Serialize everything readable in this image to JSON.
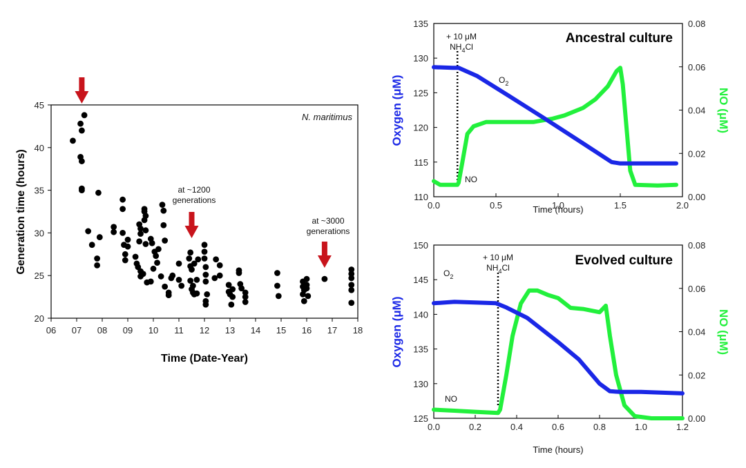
{
  "colors": {
    "oxygen": "#1a27e6",
    "no": "#22f03c",
    "arrow": "#c8141c",
    "points": "#000000"
  },
  "chart_data": [
    {
      "type": "scatter",
      "title": "N. maritimus",
      "xlabel": "Time (Date-Year)",
      "ylabel": "Generation time (hours)",
      "xlim": [
        6,
        18
      ],
      "ylim": [
        20,
        45
      ],
      "xtick_values": [
        6,
        7,
        8,
        9,
        10,
        11,
        12,
        13,
        14,
        15,
        16,
        17,
        18
      ],
      "xtick_labels": [
        "06",
        "07",
        "08",
        "09",
        "10",
        "11",
        "12",
        "13",
        "14",
        "15",
        "16",
        "17",
        "18"
      ],
      "ytick_values": [
        20,
        25,
        30,
        35,
        40,
        45
      ],
      "ytick_labels": [
        "20",
        "25",
        "30",
        "35",
        "40",
        "45"
      ],
      "annotations": [
        {
          "text": [
            "at ~1200",
            "generations"
          ],
          "x": 11.5
        },
        {
          "text": [
            "at ~3000",
            "generations"
          ],
          "x": 16.7
        }
      ],
      "arrows_at_x": [
        7.2,
        11.5,
        16.7
      ],
      "points": [
        [
          6.85,
          40.8
        ],
        [
          7.15,
          42.8
        ],
        [
          7.2,
          42.0
        ],
        [
          7.3,
          43.8
        ],
        [
          7.15,
          38.9
        ],
        [
          7.2,
          38.4
        ],
        [
          7.2,
          35.2
        ],
        [
          7.2,
          35.0
        ],
        [
          7.45,
          30.2
        ],
        [
          7.6,
          28.6
        ],
        [
          7.8,
          27.0
        ],
        [
          7.8,
          26.2
        ],
        [
          7.85,
          34.7
        ],
        [
          7.9,
          29.5
        ],
        [
          8.45,
          30.7
        ],
        [
          8.45,
          30.1
        ],
        [
          8.8,
          33.9
        ],
        [
          8.8,
          32.8
        ],
        [
          8.8,
          30.0
        ],
        [
          8.85,
          28.6
        ],
        [
          8.9,
          27.5
        ],
        [
          8.9,
          26.8
        ],
        [
          9.0,
          29.2
        ],
        [
          9.0,
          28.4
        ],
        [
          9.3,
          27.2
        ],
        [
          9.35,
          26.4
        ],
        [
          9.4,
          26.0
        ],
        [
          9.45,
          31.0
        ],
        [
          9.5,
          30.5
        ],
        [
          9.5,
          29.9
        ],
        [
          9.45,
          29.0
        ],
        [
          9.5,
          25.5
        ],
        [
          9.5,
          24.9
        ],
        [
          9.6,
          25.2
        ],
        [
          9.65,
          32.8
        ],
        [
          9.65,
          32.5
        ],
        [
          9.7,
          32.0
        ],
        [
          9.65,
          31.5
        ],
        [
          9.7,
          30.3
        ],
        [
          9.7,
          28.7
        ],
        [
          9.75,
          24.2
        ],
        [
          9.9,
          29.3
        ],
        [
          9.95,
          28.8
        ],
        [
          9.9,
          24.3
        ],
        [
          10.0,
          25.8
        ],
        [
          10.05,
          27.8
        ],
        [
          10.1,
          27.3
        ],
        [
          10.15,
          26.5
        ],
        [
          10.2,
          28.1
        ],
        [
          10.3,
          24.9
        ],
        [
          10.35,
          33.3
        ],
        [
          10.4,
          32.6
        ],
        [
          10.4,
          30.9
        ],
        [
          10.45,
          29.1
        ],
        [
          10.45,
          23.7
        ],
        [
          10.6,
          23.0
        ],
        [
          10.6,
          22.7
        ],
        [
          10.7,
          24.7
        ],
        [
          10.75,
          25.0
        ],
        [
          11.0,
          24.5
        ],
        [
          11.1,
          23.8
        ],
        [
          11.0,
          26.4
        ],
        [
          11.45,
          27.7
        ],
        [
          11.4,
          27.0
        ],
        [
          11.45,
          26.1
        ],
        [
          11.5,
          25.7
        ],
        [
          11.45,
          24.4
        ],
        [
          11.55,
          23.8
        ],
        [
          11.5,
          23.4
        ],
        [
          11.55,
          23.0
        ],
        [
          11.6,
          22.8
        ],
        [
          11.6,
          26.4
        ],
        [
          11.7,
          24.5
        ],
        [
          11.75,
          26.9
        ],
        [
          11.7,
          22.9
        ],
        [
          12.0,
          28.6
        ],
        [
          12.0,
          27.8
        ],
        [
          12.0,
          27.0
        ],
        [
          12.05,
          26.0
        ],
        [
          12.05,
          25.1
        ],
        [
          12.05,
          24.3
        ],
        [
          12.1,
          22.8
        ],
        [
          12.05,
          22.0
        ],
        [
          12.05,
          21.6
        ],
        [
          12.4,
          24.7
        ],
        [
          12.45,
          26.9
        ],
        [
          12.6,
          26.2
        ],
        [
          12.6,
          25.0
        ],
        [
          12.95,
          23.9
        ],
        [
          12.95,
          23.1
        ],
        [
          13.0,
          22.8
        ],
        [
          13.1,
          23.4
        ],
        [
          13.1,
          22.5
        ],
        [
          13.05,
          21.6
        ],
        [
          13.35,
          25.6
        ],
        [
          13.35,
          25.3
        ],
        [
          13.4,
          24.0
        ],
        [
          13.45,
          23.5
        ],
        [
          13.6,
          23.0
        ],
        [
          13.6,
          22.5
        ],
        [
          13.6,
          21.9
        ],
        [
          14.85,
          25.3
        ],
        [
          14.85,
          23.8
        ],
        [
          14.9,
          22.6
        ],
        [
          15.85,
          24.3
        ],
        [
          15.85,
          23.7
        ],
        [
          15.9,
          23.3
        ],
        [
          15.85,
          22.8
        ],
        [
          15.9,
          22.0
        ],
        [
          16.0,
          24.6
        ],
        [
          16.0,
          23.9
        ],
        [
          16.0,
          23.5
        ],
        [
          16.05,
          22.6
        ],
        [
          16.7,
          24.6
        ],
        [
          17.75,
          25.7
        ],
        [
          17.75,
          25.2
        ],
        [
          17.75,
          24.7
        ],
        [
          17.75,
          23.9
        ],
        [
          17.75,
          23.3
        ],
        [
          17.75,
          21.8
        ]
      ]
    },
    {
      "type": "line",
      "title": "Ancestral culture",
      "xlabel": "Time (hours)",
      "ylabel": "Oxygen (μM)",
      "y2label": "NO (μM)",
      "xlim": [
        0,
        2
      ],
      "ylim": [
        110,
        135
      ],
      "y2lim": [
        0,
        0.08
      ],
      "xticks": [
        "0.0",
        "0.5",
        "1.0",
        "1.5",
        "2.0"
      ],
      "yticks": [
        "110",
        "115",
        "120",
        "125",
        "130",
        "135"
      ],
      "y2ticks": [
        "0.00",
        "0.02",
        "0.04",
        "0.06",
        "0.08"
      ],
      "addition_label": "+ 10 μM",
      "addition_compound": "NH",
      "addition_sub": "4",
      "addition_suffix": "Cl",
      "addition_x": 0.19,
      "o2_label": "O",
      "o2_sub": "2",
      "no_label": "NO",
      "series": [
        {
          "name": "Oxygen",
          "axis": "left",
          "points": [
            [
              0,
              128.7
            ],
            [
              0.15,
              128.6
            ],
            [
              0.2,
              128.6
            ],
            [
              0.35,
              127.4
            ],
            [
              0.6,
              124.6
            ],
            [
              0.9,
              121.2
            ],
            [
              1.2,
              117.7
            ],
            [
              1.43,
              115.0
            ],
            [
              1.5,
              114.8
            ],
            [
              1.7,
              114.8
            ],
            [
              1.95,
              114.8
            ]
          ]
        },
        {
          "name": "NO",
          "axis": "right",
          "points": [
            [
              0,
              0.0072
            ],
            [
              0.05,
              0.0055
            ],
            [
              0.19,
              0.0055
            ],
            [
              0.2,
              0.0065
            ],
            [
              0.23,
              0.016
            ],
            [
              0.27,
              0.029
            ],
            [
              0.32,
              0.0325
            ],
            [
              0.42,
              0.0345
            ],
            [
              0.6,
              0.0345
            ],
            [
              0.8,
              0.0345
            ],
            [
              0.95,
              0.036
            ],
            [
              1.05,
              0.0375
            ],
            [
              1.2,
              0.041
            ],
            [
              1.3,
              0.045
            ],
            [
              1.4,
              0.051
            ],
            [
              1.47,
              0.058
            ],
            [
              1.5,
              0.0595
            ],
            [
              1.52,
              0.052
            ],
            [
              1.55,
              0.032
            ],
            [
              1.58,
              0.012
            ],
            [
              1.62,
              0.0055
            ],
            [
              1.8,
              0.0052
            ],
            [
              1.95,
              0.0055
            ]
          ]
        }
      ]
    },
    {
      "type": "line",
      "title": "Evolved culture",
      "xlabel": "Time (hours)",
      "ylabel": "Oxygen (μM)",
      "y2label": "NO (μM)",
      "xlim": [
        0,
        1.2
      ],
      "ylim": [
        125,
        150
      ],
      "y2lim": [
        0,
        0.08
      ],
      "xticks": [
        "0.0",
        "0.2",
        "0.4",
        "0.6",
        "0.8",
        "1.0",
        "1.2"
      ],
      "yticks": [
        "125",
        "130",
        "135",
        "140",
        "145",
        "150"
      ],
      "y2ticks": [
        "0.00",
        "0.02",
        "0.04",
        "0.06",
        "0.08"
      ],
      "addition_label": "+ 10 μM",
      "addition_compound": "NH",
      "addition_sub": "4",
      "addition_suffix": "Cl",
      "addition_x": 0.31,
      "o2_label": "O",
      "o2_sub": "2",
      "no_label": "NO",
      "series": [
        {
          "name": "Oxygen",
          "axis": "left",
          "points": [
            [
              0,
              141.6
            ],
            [
              0.1,
              141.8
            ],
            [
              0.2,
              141.7
            ],
            [
              0.3,
              141.6
            ],
            [
              0.35,
              141.0
            ],
            [
              0.45,
              139.5
            ],
            [
              0.6,
              136.0
            ],
            [
              0.7,
              133.5
            ],
            [
              0.8,
              130.0
            ],
            [
              0.85,
              128.9
            ],
            [
              0.9,
              128.8
            ],
            [
              1.0,
              128.8
            ],
            [
              1.2,
              128.6
            ]
          ]
        },
        {
          "name": "NO",
          "axis": "right",
          "points": [
            [
              0,
              0.004
            ],
            [
              0.1,
              0.0035
            ],
            [
              0.2,
              0.003
            ],
            [
              0.31,
              0.0025
            ],
            [
              0.32,
              0.004
            ],
            [
              0.35,
              0.02
            ],
            [
              0.38,
              0.038
            ],
            [
              0.42,
              0.053
            ],
            [
              0.46,
              0.059
            ],
            [
              0.5,
              0.059
            ],
            [
              0.55,
              0.057
            ],
            [
              0.6,
              0.0555
            ],
            [
              0.66,
              0.051
            ],
            [
              0.72,
              0.0505
            ],
            [
              0.8,
              0.049
            ],
            [
              0.83,
              0.052
            ],
            [
              0.85,
              0.038
            ],
            [
              0.88,
              0.02
            ],
            [
              0.92,
              0.006
            ],
            [
              0.97,
              0.001
            ],
            [
              1.05,
              0.0
            ],
            [
              1.2,
              0.0
            ]
          ]
        }
      ]
    }
  ]
}
